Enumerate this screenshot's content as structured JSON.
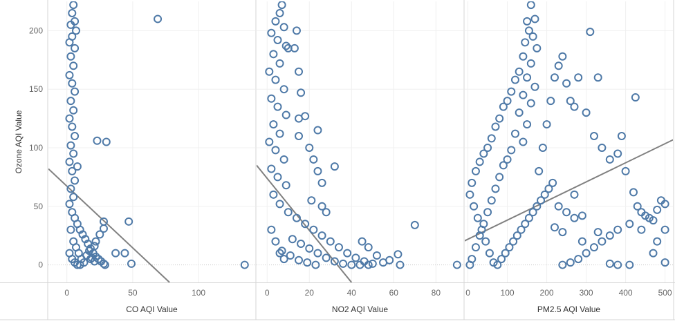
{
  "chart_data": {
    "type": "scatter",
    "ylabel": "Ozone AQI Value",
    "ylim": [
      -15,
      225
    ],
    "yticks": [
      0,
      50,
      100,
      150,
      200
    ],
    "grid": true,
    "marker": "hollow-circle",
    "marker_color": "#4e79a7",
    "trend_color": "#808080",
    "panels": [
      {
        "xlabel": "CO AQI Value",
        "xlim": [
          -14,
          143
        ],
        "xticks": [
          0,
          50,
          100
        ],
        "trend_line": {
          "points": [
            [
              -14,
              82
            ],
            [
              78,
              -15
            ]
          ]
        },
        "points": [
          [
            5,
            222
          ],
          [
            4,
            215
          ],
          [
            6,
            208
          ],
          [
            3,
            205
          ],
          [
            7,
            200
          ],
          [
            4,
            195
          ],
          [
            2,
            190
          ],
          [
            6,
            185
          ],
          [
            3,
            178
          ],
          [
            5,
            170
          ],
          [
            2,
            162
          ],
          [
            4,
            155
          ],
          [
            6,
            148
          ],
          [
            3,
            140
          ],
          [
            5,
            132
          ],
          [
            2,
            125
          ],
          [
            4,
            118
          ],
          [
            6,
            110
          ],
          [
            3,
            102
          ],
          [
            5,
            95
          ],
          [
            8,
            84
          ],
          [
            2,
            88
          ],
          [
            4,
            80
          ],
          [
            6,
            72
          ],
          [
            3,
            65
          ],
          [
            5,
            58
          ],
          [
            2,
            52
          ],
          [
            4,
            45
          ],
          [
            6,
            40
          ],
          [
            8,
            35
          ],
          [
            10,
            30
          ],
          [
            12,
            26
          ],
          [
            14,
            22
          ],
          [
            16,
            18
          ],
          [
            18,
            14
          ],
          [
            20,
            10
          ],
          [
            22,
            7
          ],
          [
            24,
            5
          ],
          [
            26,
            3
          ],
          [
            28,
            1
          ],
          [
            3,
            30
          ],
          [
            5,
            20
          ],
          [
            7,
            15
          ],
          [
            9,
            10
          ],
          [
            11,
            5
          ],
          [
            13,
            2
          ],
          [
            15,
            8
          ],
          [
            17,
            12
          ],
          [
            19,
            6
          ],
          [
            21,
            3
          ],
          [
            2,
            10
          ],
          [
            4,
            5
          ],
          [
            6,
            2
          ],
          [
            8,
            0
          ],
          [
            10,
            0
          ],
          [
            23,
            106
          ],
          [
            30,
            105
          ],
          [
            47,
            37
          ],
          [
            44,
            10
          ],
          [
            37,
            10
          ],
          [
            49,
            1
          ],
          [
            29,
            0
          ],
          [
            69,
            210
          ],
          [
            135,
            0
          ],
          [
            21,
            16
          ],
          [
            22,
            20
          ],
          [
            28,
            37
          ],
          [
            28,
            31
          ],
          [
            25,
            26
          ],
          [
            18,
            5
          ]
        ]
      },
      {
        "xlabel": "NO2 AQI Value",
        "xlim": [
          -5,
          93
        ],
        "xticks": [
          0,
          20,
          40,
          60,
          80
        ],
        "trend_line": {
          "points": [
            [
              -5,
              85
            ],
            [
              40,
              -15
            ]
          ]
        },
        "points": [
          [
            7,
            222
          ],
          [
            6,
            215
          ],
          [
            4,
            208
          ],
          [
            8,
            203
          ],
          [
            2,
            198
          ],
          [
            5,
            192
          ],
          [
            9,
            187
          ],
          [
            3,
            180
          ],
          [
            6,
            172
          ],
          [
            1,
            165
          ],
          [
            4,
            158
          ],
          [
            8,
            150
          ],
          [
            2,
            142
          ],
          [
            5,
            135
          ],
          [
            9,
            128
          ],
          [
            3,
            120
          ],
          [
            6,
            112
          ],
          [
            1,
            105
          ],
          [
            4,
            98
          ],
          [
            8,
            90
          ],
          [
            2,
            82
          ],
          [
            5,
            75
          ],
          [
            9,
            68
          ],
          [
            3,
            60
          ],
          [
            6,
            52
          ],
          [
            10,
            45
          ],
          [
            14,
            40
          ],
          [
            18,
            35
          ],
          [
            22,
            30
          ],
          [
            26,
            25
          ],
          [
            30,
            20
          ],
          [
            34,
            15
          ],
          [
            38,
            10
          ],
          [
            42,
            6
          ],
          [
            46,
            3
          ],
          [
            50,
            1
          ],
          [
            12,
            22
          ],
          [
            16,
            18
          ],
          [
            20,
            14
          ],
          [
            24,
            10
          ],
          [
            28,
            6
          ],
          [
            32,
            3
          ],
          [
            36,
            1
          ],
          [
            40,
            0
          ],
          [
            44,
            0
          ],
          [
            48,
            0
          ],
          [
            7,
            12
          ],
          [
            11,
            8
          ],
          [
            15,
            4
          ],
          [
            19,
            2
          ],
          [
            23,
            0
          ],
          [
            2,
            30
          ],
          [
            4,
            20
          ],
          [
            6,
            10
          ],
          [
            8,
            5
          ],
          [
            16,
            147
          ],
          [
            18,
            127
          ],
          [
            15,
            165
          ],
          [
            13,
            185
          ],
          [
            10,
            185
          ],
          [
            14,
            200
          ],
          [
            15,
            125
          ],
          [
            24,
            115
          ],
          [
            15,
            110
          ],
          [
            20,
            100
          ],
          [
            22,
            90
          ],
          [
            24,
            80
          ],
          [
            26,
            70
          ],
          [
            21,
            55
          ],
          [
            26,
            50
          ],
          [
            28,
            45
          ],
          [
            32,
            84
          ],
          [
            70,
            34
          ],
          [
            62,
            9
          ],
          [
            58,
            4
          ],
          [
            63,
            0
          ],
          [
            90,
            0
          ],
          [
            52,
            8
          ],
          [
            55,
            2
          ],
          [
            48,
            15
          ],
          [
            45,
            20
          ]
        ]
      },
      {
        "xlabel": "PM2.5 AQI Value",
        "xlim": [
          -8,
          520
        ],
        "xticks": [
          0,
          100,
          200,
          300,
          400,
          500
        ],
        "trend_line": {
          "points": [
            [
              -30,
              17
            ],
            [
              540,
              110
            ]
          ]
        },
        "points": [
          [
            160,
            222
          ],
          [
            150,
            208
          ],
          [
            170,
            210
          ],
          [
            155,
            200
          ],
          [
            165,
            195
          ],
          [
            145,
            190
          ],
          [
            175,
            185
          ],
          [
            140,
            178
          ],
          [
            160,
            172
          ],
          [
            130,
            165
          ],
          [
            150,
            160
          ],
          [
            120,
            158
          ],
          [
            170,
            152
          ],
          [
            110,
            148
          ],
          [
            140,
            145
          ],
          [
            100,
            140
          ],
          [
            160,
            138
          ],
          [
            90,
            135
          ],
          [
            130,
            130
          ],
          [
            80,
            125
          ],
          [
            150,
            120
          ],
          [
            70,
            118
          ],
          [
            120,
            112
          ],
          [
            60,
            108
          ],
          [
            140,
            105
          ],
          [
            50,
            100
          ],
          [
            110,
            98
          ],
          [
            40,
            95
          ],
          [
            100,
            90
          ],
          [
            30,
            88
          ],
          [
            90,
            85
          ],
          [
            20,
            80
          ],
          [
            80,
            75
          ],
          [
            10,
            70
          ],
          [
            70,
            65
          ],
          [
            5,
            60
          ],
          [
            60,
            55
          ],
          [
            15,
            50
          ],
          [
            50,
            45
          ],
          [
            25,
            40
          ],
          [
            40,
            35
          ],
          [
            35,
            30
          ],
          [
            30,
            25
          ],
          [
            45,
            20
          ],
          [
            20,
            15
          ],
          [
            55,
            10
          ],
          [
            10,
            5
          ],
          [
            65,
            2
          ],
          [
            5,
            0
          ],
          [
            75,
            0
          ],
          [
            85,
            5
          ],
          [
            95,
            10
          ],
          [
            105,
            15
          ],
          [
            115,
            20
          ],
          [
            125,
            25
          ],
          [
            135,
            30
          ],
          [
            145,
            35
          ],
          [
            155,
            40
          ],
          [
            165,
            45
          ],
          [
            175,
            50
          ],
          [
            185,
            55
          ],
          [
            195,
            60
          ],
          [
            205,
            65
          ],
          [
            215,
            70
          ],
          [
            180,
            80
          ],
          [
            190,
            100
          ],
          [
            200,
            120
          ],
          [
            210,
            140
          ],
          [
            220,
            160
          ],
          [
            230,
            170
          ],
          [
            240,
            178
          ],
          [
            250,
            155
          ],
          [
            260,
            140
          ],
          [
            270,
            135
          ],
          [
            280,
            160
          ],
          [
            300,
            130
          ],
          [
            310,
            199
          ],
          [
            330,
            160
          ],
          [
            320,
            110
          ],
          [
            340,
            100
          ],
          [
            360,
            90
          ],
          [
            380,
            95
          ],
          [
            390,
            110
          ],
          [
            400,
            80
          ],
          [
            425,
            143
          ],
          [
            420,
            62
          ],
          [
            430,
            50
          ],
          [
            440,
            45
          ],
          [
            450,
            42
          ],
          [
            460,
            40
          ],
          [
            470,
            38
          ],
          [
            480,
            47
          ],
          [
            490,
            55
          ],
          [
            500,
            52
          ],
          [
            410,
            35
          ],
          [
            380,
            30
          ],
          [
            360,
            25
          ],
          [
            340,
            20
          ],
          [
            320,
            15
          ],
          [
            300,
            10
          ],
          [
            280,
            5
          ],
          [
            260,
            2
          ],
          [
            240,
            0
          ],
          [
            360,
            1
          ],
          [
            380,
            0
          ],
          [
            410,
            0
          ],
          [
            440,
            30
          ],
          [
            470,
            10
          ],
          [
            500,
            2
          ],
          [
            500,
            30
          ],
          [
            480,
            20
          ],
          [
            230,
            50
          ],
          [
            250,
            45
          ],
          [
            270,
            40
          ],
          [
            290,
            42
          ],
          [
            270,
            60
          ],
          [
            220,
            32
          ],
          [
            240,
            28
          ],
          [
            290,
            20
          ],
          [
            330,
            28
          ]
        ]
      }
    ]
  }
}
